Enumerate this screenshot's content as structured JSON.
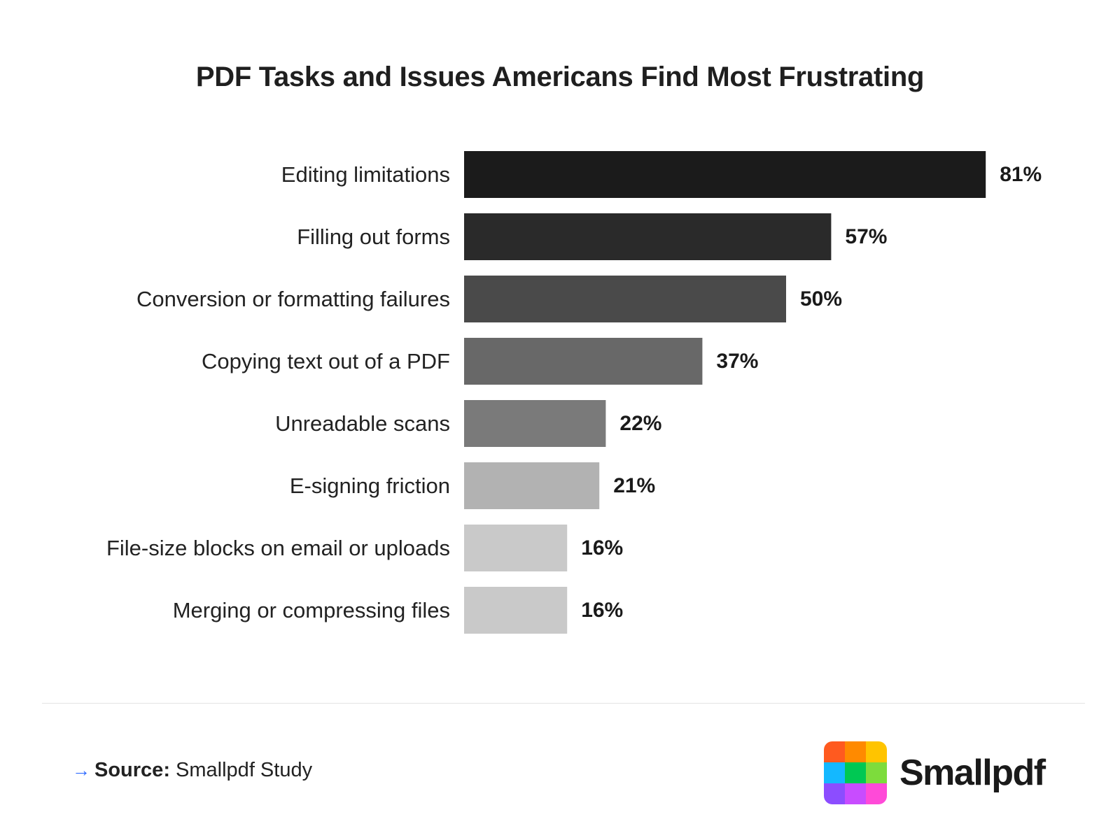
{
  "chart_data": {
    "type": "bar",
    "orientation": "horizontal",
    "title": "PDF Tasks and Issues Americans Find Most Frustrating",
    "categories": [
      "Editing limitations",
      "Filling out forms",
      "Conversion or formatting failures",
      "Copying text out of a PDF",
      "Unreadable scans",
      "E-signing friction",
      "File-size blocks on email or uploads",
      "Merging or compressing files"
    ],
    "values": [
      81,
      57,
      50,
      37,
      22,
      21,
      16,
      16
    ],
    "value_labels": [
      "81%",
      "57%",
      "50%",
      "37%",
      "22%",
      "21%",
      "16%",
      "16%"
    ],
    "unit": "%",
    "bar_colors": [
      "#1b1b1b",
      "#2a2a2a",
      "#4a4a4a",
      "#686868",
      "#7a7a7a",
      "#b2b2b2",
      "#c9c9c9",
      "#c9c9c9"
    ],
    "xlim": [
      0,
      100
    ],
    "grid": false,
    "legend": "none"
  },
  "footer": {
    "source_prefix": "Source:",
    "source_text": " Smallpdf Study",
    "arrow_icon": "arrow-right-icon"
  },
  "brand": {
    "name": "Smallpdf",
    "logo_colors": [
      "#ff5a1f",
      "#ff8a00",
      "#ffc400",
      "#14b8ff",
      "#00c853",
      "#7ddc3c",
      "#8c4dff",
      "#c84cff",
      "#ff4ad8"
    ]
  }
}
